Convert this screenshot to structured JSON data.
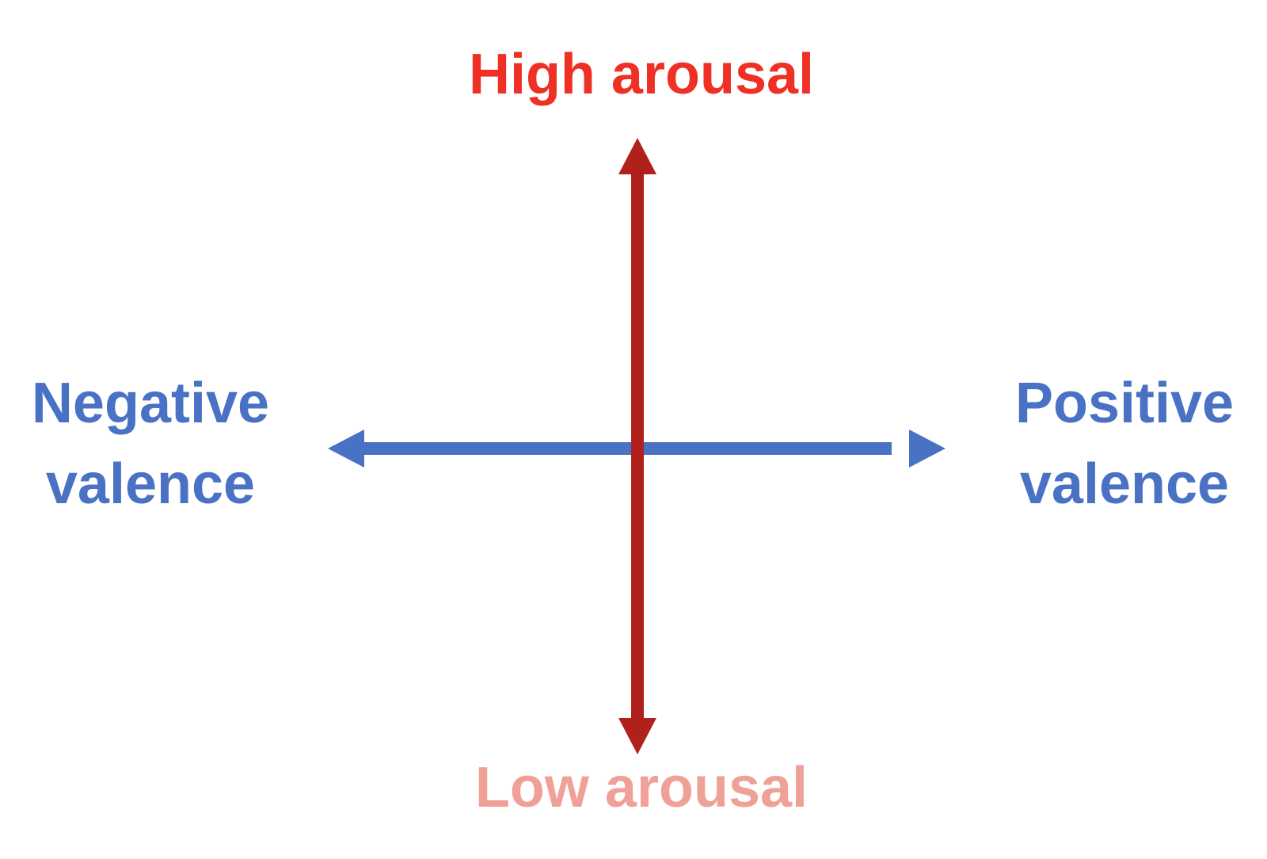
{
  "diagram": {
    "title_top": "High arousal",
    "title_bottom": "Low arousal",
    "left_label": {
      "line1": "Negative",
      "line2": "valence"
    },
    "right_label": {
      "line1": "Positive",
      "line2": "valence"
    },
    "colors": {
      "high_arousal": "#ee3124",
      "low_arousal": "#f0a197",
      "valence": "#4a72c4",
      "vertical_axis": "#b0201c",
      "horizontal_axis": "#4a72c4"
    }
  }
}
